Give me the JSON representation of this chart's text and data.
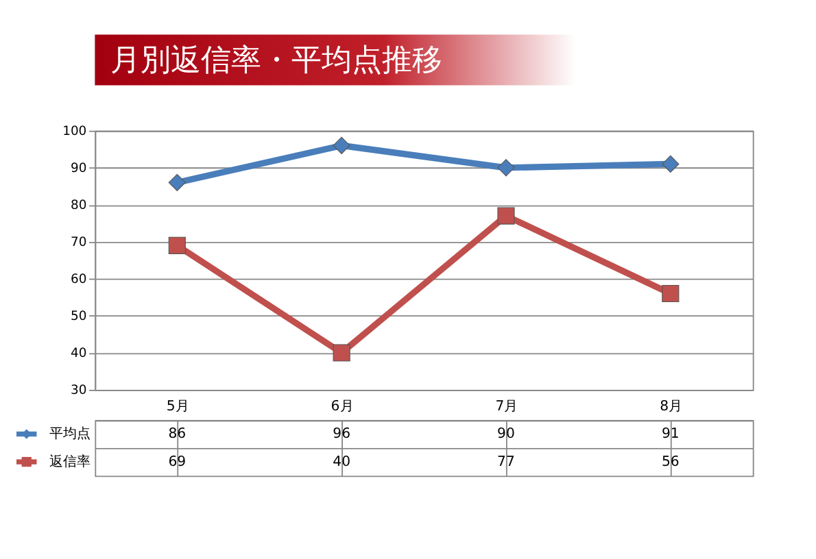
{
  "chart_data": {
    "type": "line",
    "title": "月別返信率・平均点推移",
    "categories": [
      "5月",
      "6月",
      "7月",
      "8月"
    ],
    "series": [
      {
        "name": "平均点",
        "color": "#4a7ebb",
        "marker": "diamond",
        "values": [
          86,
          96,
          90,
          91
        ]
      },
      {
        "name": "返信率",
        "color": "#c0504d",
        "marker": "square",
        "values": [
          69,
          40,
          77,
          56
        ]
      }
    ],
    "ylim": [
      30,
      100
    ],
    "yticks": [
      30,
      40,
      50,
      60,
      70,
      80,
      90,
      100
    ],
    "grid": "y",
    "data_labels": true,
    "legend": "bottom"
  }
}
